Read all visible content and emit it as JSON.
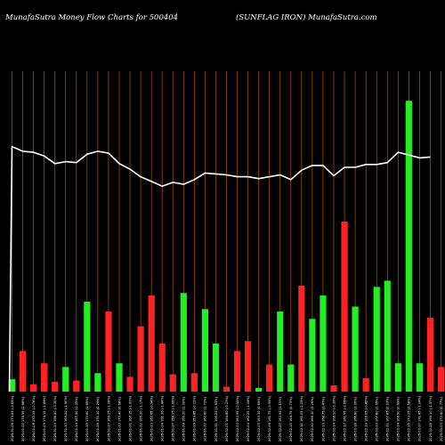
{
  "header": {
    "left": "MunafaSutra  Money Flow  Charts for 500404",
    "right": "(SUNFLAG IRON) MunafaSutra.com"
  },
  "chart_data": {
    "type": "bar",
    "title": "MunafaSutra  Money Flow  Charts for 500404",
    "subtitle": "(SUNFLAG IRON) MunafaSutra.com",
    "categories": [
      "2025-01-06 173.55 (-0.65%)",
      "2025-01-07 178.55 (2.88%)",
      "2025-01-08 177.15 (-0.78%)",
      "2025-01-09 174.15 (-1.69%)",
      "2025-01-10 168.40 (-3.30%)",
      "2025-01-13 165.20 (-1.90%)",
      "2025-01-14 167.50 (1.39%)",
      "2025-01-15 170.60 (1.85%)",
      "2025-01-16 171.10 (0.29%)",
      "2025-01-17 169.25 (-1.08%)",
      "2025-01-20 170.40 (0.68%)",
      "2025-01-21 167.15 (-1.91%)",
      "2025-01-22 165.20 (-1.17%)",
      "2025-01-23 163.65 (-0.94%)",
      "2025-01-24 161.30 (-1.44%)",
      "2025-01-27 158.15 (-1.95%)",
      "2025-01-28 160.20 (1.30%)",
      "2025-01-29 159.85 (-0.22%)",
      "2025-01-30 162.60 (1.72%)",
      "2025-01-31 165.25 (1.63%)",
      "2025-02-01 164.80 (-0.27%)",
      "2025-02-03 163.95 (-0.52%)",
      "2025-02-04 162.25 (-1.04%)",
      "2025-02-05 163.30 (0.65%)",
      "2025-02-06 161.75 (-0.95%)",
      "2025-02-07 163.55 (1.11%)",
      "2025-02-10 164.75 (0.73%)",
      "2025-02-11 161.05 (-2.25%)",
      "2025-02-12 166.30 (3.26%)",
      "2025-02-13 168.75 (1.47%)",
      "2025-02-14 168.10 (-0.39%)",
      "2025-02-17 161.95 (-3.66%)",
      "2025-02-18 166.80 (3.00%)",
      "2025-02-19 166.05 (-0.45%)",
      "2025-02-20 167.80 (1.05%)",
      "2025-02-21 167.85 (0.03%)",
      "2025-02-24 168.90 (0.63%)",
      "2025-02-25 173.25 (2.58%)",
      "2025-02-27 171.45 (-1.04%)",
      "2025-02-28 169.10 (-1.37%)",
      "2025-03-03 170.40 (0.77%)"
    ],
    "bar_values": [
      10,
      33,
      6,
      23,
      8,
      20,
      9,
      73,
      15,
      65,
      23,
      12,
      53,
      78,
      39,
      14,
      80,
      15,
      67,
      39,
      4,
      33,
      41,
      3,
      22,
      65,
      22,
      86,
      59,
      78,
      5,
      138,
      69,
      11,
      85,
      90,
      23,
      236,
      23,
      60,
      20
    ],
    "bar_colors": [
      "green",
      "red",
      "red",
      "red",
      "red",
      "green",
      "red",
      "green",
      "green",
      "red",
      "green",
      "red",
      "red",
      "red",
      "red",
      "red",
      "green",
      "red",
      "green",
      "green",
      "red",
      "red",
      "red",
      "green",
      "red",
      "green",
      "green",
      "red",
      "green",
      "green",
      "red",
      "red",
      "green",
      "red",
      "green",
      "green",
      "green",
      "green",
      "green",
      "red",
      "red"
    ],
    "line_values": [
      260,
      255,
      254,
      250,
      242,
      244,
      243,
      252,
      255,
      253,
      242,
      236,
      228,
      223,
      218,
      222,
      220,
      225,
      232,
      231,
      230,
      228,
      228,
      226,
      228,
      230,
      225,
      235,
      240,
      240,
      229,
      238,
      238,
      241,
      241,
      243,
      254,
      251,
      248,
      249
    ],
    "line_start": 0,
    "bar_ylim": [
      0,
      260
    ],
    "line_ylim": [
      0,
      340
    ],
    "xlabel": "",
    "ylabel": "",
    "colors": {
      "background": "#000000",
      "grid": "#b05a00",
      "up": "#22ee22",
      "down": "#ff2222",
      "line": "#ffffff",
      "text": "#ffffff"
    },
    "grid": true
  }
}
